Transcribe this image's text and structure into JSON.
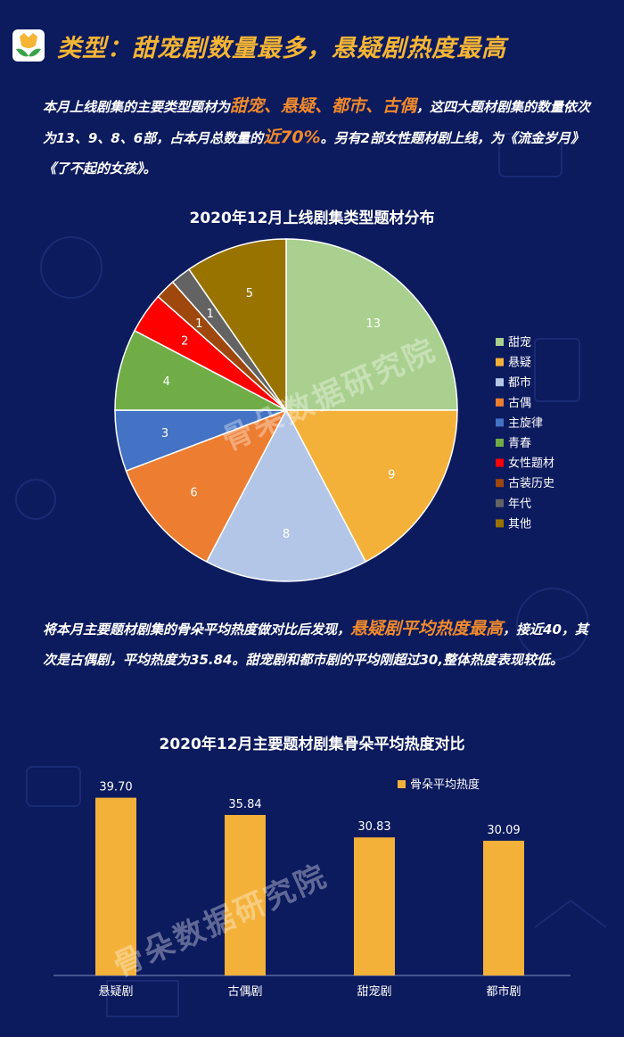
{
  "header": {
    "title": "类型：甜宠剧数量最多，悬疑剧热度最高",
    "colors": {
      "background": "#0c1a5e",
      "title": "#f5b535",
      "highlight": "#f08a2c"
    }
  },
  "para1": {
    "t1": "本月上线剧集的主要类型题材为",
    "h1": "甜宠、悬疑、都市、古偶",
    "t2": "，这四大题材剧集的数量依次为13、9、8、6部，占本月总数量的",
    "h2": "近70%",
    "t3": "。另有2部女性题材剧上线，为《流金岁月》《了不起的女孩》。"
  },
  "para2": {
    "t1": "将本月主要题材剧集的骨朵平均热度做对比后发现，",
    "h1": "悬疑剧平均热度最高",
    "t2": "，接近40，其次是古偶剧，平均热度为35.84。甜宠剧和都市剧的平均刚超过30,整体热度表现较低。"
  },
  "watermark": "骨朵数据研究院",
  "chart_data": [
    {
      "type": "pie",
      "title": "2020年12月上线剧集类型题材分布",
      "legend_position": "right",
      "categories": [
        "甜宠",
        "悬疑",
        "都市",
        "古偶",
        "主旋律",
        "青春",
        "女性题材",
        "古装历史",
        "年代",
        "其他"
      ],
      "values": [
        13,
        9,
        8,
        6,
        3,
        4,
        2,
        1,
        1,
        5
      ],
      "colors": [
        "#a9d08e",
        "#f4b13a",
        "#b4c6e7",
        "#ed7d31",
        "#4472c4",
        "#70ad47",
        "#ff0000",
        "#9e480e",
        "#636363",
        "#997300"
      ]
    },
    {
      "type": "bar",
      "title": "2020年12月主要题材剧集骨朵平均热度对比",
      "legend_position": "top-right",
      "categories": [
        "悬疑剧",
        "古偶剧",
        "甜宠剧",
        "都市剧"
      ],
      "series": [
        {
          "name": "骨朵平均热度",
          "values": [
            39.7,
            35.84,
            30.83,
            30.09
          ],
          "labels": [
            "39.70",
            "35.84",
            "30.83",
            "30.09"
          ]
        }
      ],
      "ylim": [
        0,
        45
      ],
      "color": "#f4b13a",
      "grid": false
    }
  ]
}
